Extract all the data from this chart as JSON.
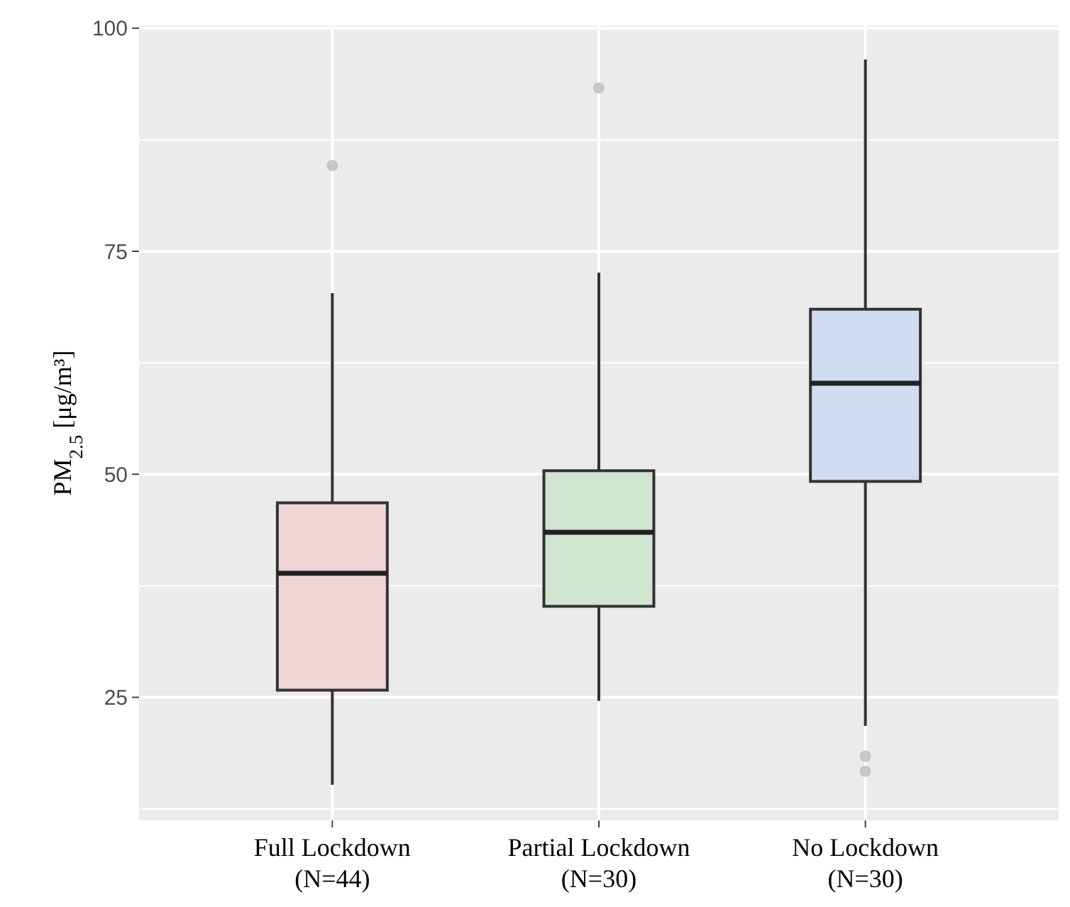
{
  "chart_data": {
    "type": "box",
    "ylabel": "PM$_{2.5}$ [μg/m³]",
    "categories": [
      "Full Lockdown\n(N=44)",
      "Partial Lockdown\n(N=30)",
      "No Lockdown\n(N=30)"
    ],
    "colors": [
      "#efd5d6",
      "#cfe5d0",
      "#d0dcf1"
    ],
    "boxes": [
      {
        "low": 15.2,
        "q1": 25.8,
        "median": 38.9,
        "q3": 46.8,
        "high": 70.3,
        "outliers": [
          84.6
        ]
      },
      {
        "low": 24.6,
        "q1": 35.2,
        "median": 43.5,
        "q3": 50.4,
        "high": 72.6,
        "outliers": [
          93.3
        ]
      },
      {
        "low": 21.8,
        "q1": 49.2,
        "median": 60.2,
        "q3": 68.5,
        "high": 96.5,
        "outliers": [
          18.4,
          16.7
        ]
      }
    ],
    "ylim": [
      11.2,
      100.3
    ],
    "yticks": [
      25,
      50,
      75,
      100
    ],
    "grid": true
  }
}
